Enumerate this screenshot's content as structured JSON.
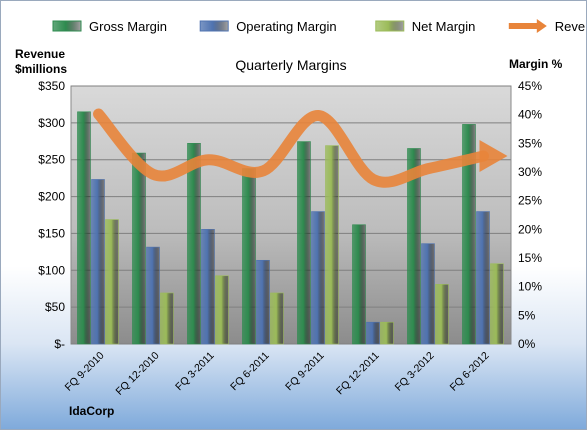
{
  "chart_data": {
    "type": "bar",
    "title": "Quarterly Margins",
    "company": "IdaCorp",
    "y_left_label": [
      "Revenue",
      "$millions"
    ],
    "y_right_label": "Margin %",
    "y_left_ticks": [
      "$-",
      "$50",
      "$100",
      "$150",
      "$200",
      "$250",
      "$300",
      "$350"
    ],
    "y_right_ticks": [
      "0%",
      "5%",
      "10%",
      "15%",
      "20%",
      "25%",
      "30%",
      "35%",
      "40%",
      "45%"
    ],
    "y_left_range": [
      0,
      350
    ],
    "y_right_range": [
      0,
      45
    ],
    "categories": [
      "FQ 9-2010",
      "FQ 12-2010",
      "FQ 3-2011",
      "FQ 6-2011",
      "FQ 9-2011",
      "FQ 12-2011",
      "FQ 3-2012",
      "FQ 6-2012"
    ],
    "series": [
      {
        "name": "Gross Margin",
        "axis": "right",
        "color": "#2e8b4f",
        "values": [
          40.5,
          33.3,
          35.0,
          30.6,
          35.3,
          20.8,
          34.1,
          38.3
        ]
      },
      {
        "name": "Operating Margin",
        "axis": "right",
        "color": "#4f73b0",
        "values": [
          28.7,
          16.9,
          20.0,
          14.6,
          23.1,
          3.8,
          17.5,
          23.1
        ]
      },
      {
        "name": "Net Margin",
        "axis": "right",
        "color": "#9bbb59",
        "values": [
          21.7,
          8.9,
          11.9,
          8.9,
          34.6,
          3.8,
          10.4,
          14.0
        ]
      },
      {
        "name": "Revenues",
        "axis": "left",
        "type": "line",
        "color": "#e8843a",
        "values": [
          312,
          230,
          250,
          235,
          310,
          223,
          238,
          255
        ]
      }
    ],
    "grid": true,
    "legend_position": "top"
  }
}
